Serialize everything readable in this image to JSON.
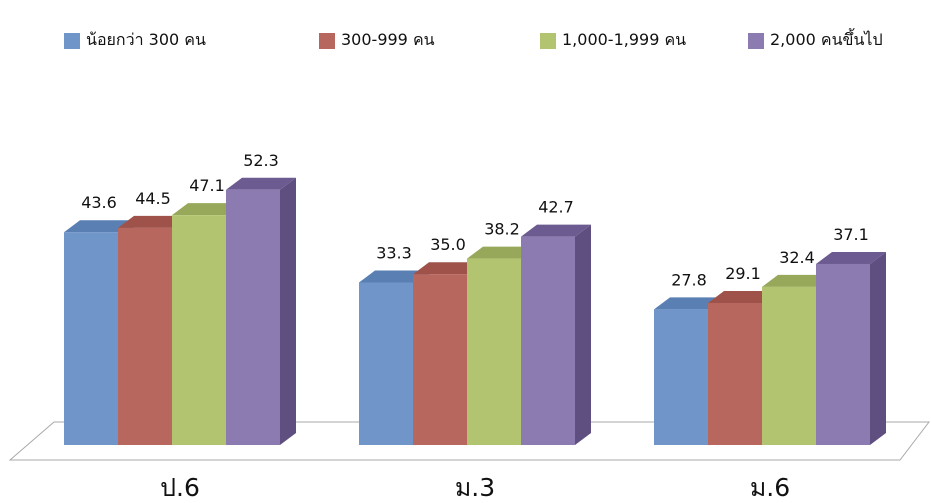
{
  "chart_data": {
    "type": "bar",
    "categories": [
      "ป.6",
      "ม.3",
      "ม.6"
    ],
    "series": [
      {
        "name": "น้อยกว่า 300 คน",
        "values": [
          43.6,
          33.3,
          27.8
        ],
        "color": "#6f95c9",
        "side": "#4e6f9e",
        "top": "#5a7fb3"
      },
      {
        "name": "300-999 คน",
        "values": [
          44.5,
          35.0,
          29.1
        ],
        "color": "#b8675e",
        "side": "#8e4a43",
        "top": "#9e524a"
      },
      {
        "name": "1,000-1,999 คน",
        "values": [
          47.1,
          38.2,
          32.4
        ],
        "color": "#b3c470",
        "side": "#8a9a4e",
        "top": "#97a85a"
      },
      {
        "name": "2,000 คนขึ้นไป",
        "values": [
          52.3,
          42.7,
          37.1
        ],
        "color": "#8c7bb0",
        "side": "#5f4f80",
        "top": "#6c5b91"
      }
    ],
    "ylim": [
      0,
      60
    ],
    "grid": false,
    "legend": "top",
    "data_labels": true,
    "three_d": true
  }
}
